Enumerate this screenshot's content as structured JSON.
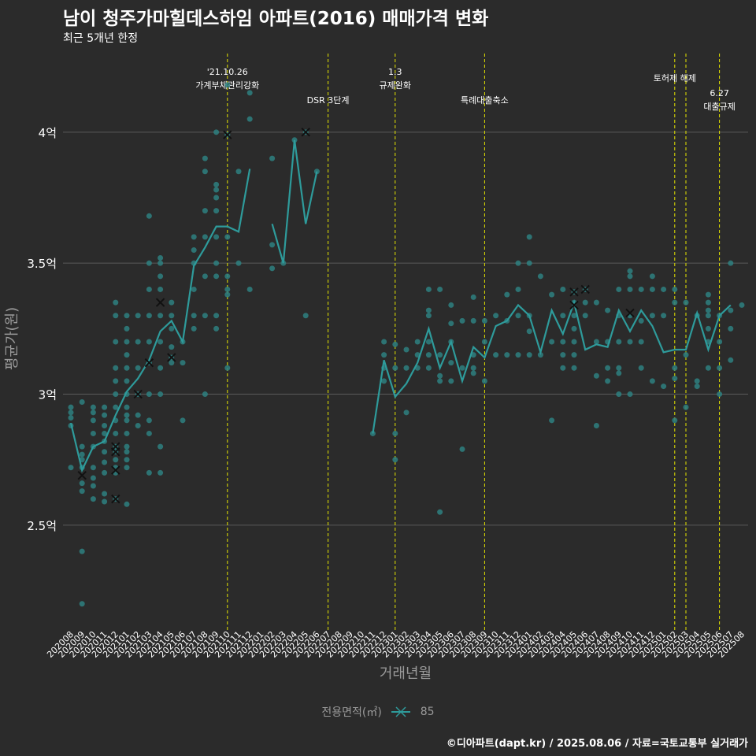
{
  "title": "남이 청주가마힐데스하임 아파트(2016) 매매가격 변화",
  "subtitle": "최근 5개년 한정",
  "caption": "©디아파트(dapt.kr) / 2025.08.06 / 자료=국토교통부 실거래가",
  "legend": {
    "title": "전용면적(㎡)",
    "item": "85"
  },
  "colors": {
    "background": "#2b2b2b",
    "series": "#2e9b9b",
    "point": "#2e8080",
    "vline": "#e5e500",
    "grid": "#5a5a5a",
    "text": "#ffffff",
    "axis_text": "#9a9a9a",
    "cross": "#111111"
  },
  "chart_data": {
    "type": "line",
    "xlabel": "거래년월",
    "ylabel": "평균가(원)",
    "ylim": [
      2.1,
      4.3
    ],
    "y_ticks": [
      {
        "value": 2.5,
        "label": "2.5억"
      },
      {
        "value": 3.0,
        "label": "3억"
      },
      {
        "value": 3.5,
        "label": "3.5억"
      },
      {
        "value": 4.0,
        "label": "4억"
      }
    ],
    "x_categories": [
      "202008",
      "202009",
      "202010",
      "202011",
      "202012",
      "202101",
      "202102",
      "202103",
      "202104",
      "202105",
      "202106",
      "202107",
      "202108",
      "202109",
      "202110",
      "202111",
      "202112",
      "202201",
      "202202",
      "202203",
      "202204",
      "202205",
      "202206",
      "202207",
      "202208",
      "202209",
      "202210",
      "202211",
      "202212",
      "202301",
      "202302",
      "202303",
      "202304",
      "202305",
      "202306",
      "202307",
      "202308",
      "202309",
      "202310",
      "202311",
      "202312",
      "202401",
      "202402",
      "202403",
      "202404",
      "202405",
      "202406",
      "202407",
      "202408",
      "202409",
      "202410",
      "202411",
      "202412",
      "202501",
      "202502",
      "202503",
      "202504",
      "202505",
      "202506",
      "202507",
      "202508"
    ],
    "series": [
      {
        "name": "85",
        "values": [
          2.89,
          2.71,
          2.8,
          2.82,
          2.92,
          3.01,
          3.06,
          3.13,
          3.24,
          3.28,
          3.2,
          3.49,
          3.56,
          3.64,
          3.64,
          3.62,
          3.86,
          null,
          3.65,
          3.5,
          3.97,
          3.65,
          3.85,
          null,
          null,
          null,
          null,
          2.85,
          3.13,
          2.99,
          3.04,
          3.12,
          3.25,
          3.1,
          3.2,
          3.05,
          3.18,
          3.14,
          3.26,
          3.28,
          3.34,
          3.3,
          3.16,
          3.32,
          3.23,
          3.35,
          3.17,
          3.19,
          3.18,
          3.32,
          3.24,
          3.32,
          3.26,
          3.16,
          3.17,
          3.17,
          3.31,
          3.17,
          3.3,
          3.34,
          null
        ]
      }
    ],
    "points": [
      [
        0,
        2.95
      ],
      [
        0,
        2.93
      ],
      [
        0,
        2.91
      ],
      [
        0,
        2.88
      ],
      [
        0,
        2.72
      ],
      [
        1,
        2.97
      ],
      [
        1,
        2.8
      ],
      [
        1,
        2.77
      ],
      [
        1,
        2.75
      ],
      [
        1,
        2.72
      ],
      [
        1,
        2.66
      ],
      [
        1,
        2.63
      ],
      [
        1,
        2.4
      ],
      [
        1,
        2.2
      ],
      [
        2,
        2.95
      ],
      [
        2,
        2.93
      ],
      [
        2,
        2.9
      ],
      [
        2,
        2.85
      ],
      [
        2,
        2.8
      ],
      [
        2,
        2.72
      ],
      [
        2,
        2.68
      ],
      [
        2,
        2.65
      ],
      [
        2,
        2.6
      ],
      [
        3,
        2.95
      ],
      [
        3,
        2.92
      ],
      [
        3,
        2.88
      ],
      [
        3,
        2.85
      ],
      [
        3,
        2.82
      ],
      [
        3,
        2.78
      ],
      [
        3,
        2.74
      ],
      [
        3,
        2.7
      ],
      [
        3,
        2.62
      ],
      [
        3,
        2.59
      ],
      [
        4,
        3.35
      ],
      [
        4,
        3.3
      ],
      [
        4,
        3.2
      ],
      [
        4,
        3.1
      ],
      [
        4,
        3.05
      ],
      [
        4,
        3.0
      ],
      [
        4,
        2.95
      ],
      [
        4,
        2.9
      ],
      [
        4,
        2.85
      ],
      [
        4,
        2.8
      ],
      [
        4,
        2.78
      ],
      [
        4,
        2.75
      ],
      [
        4,
        2.72
      ],
      [
        4,
        2.7
      ],
      [
        4,
        2.6
      ],
      [
        5,
        3.3
      ],
      [
        5,
        3.25
      ],
      [
        5,
        3.2
      ],
      [
        5,
        3.15
      ],
      [
        5,
        3.1
      ],
      [
        5,
        3.05
      ],
      [
        5,
        3.0
      ],
      [
        5,
        2.95
      ],
      [
        5,
        2.92
      ],
      [
        5,
        2.9
      ],
      [
        5,
        2.85
      ],
      [
        5,
        2.8
      ],
      [
        5,
        2.78
      ],
      [
        5,
        2.75
      ],
      [
        5,
        2.72
      ],
      [
        5,
        2.58
      ],
      [
        6,
        3.3
      ],
      [
        6,
        3.2
      ],
      [
        6,
        3.1
      ],
      [
        6,
        3.0
      ],
      [
        6,
        2.92
      ],
      [
        6,
        2.88
      ],
      [
        7,
        3.68
      ],
      [
        7,
        3.5
      ],
      [
        7,
        3.4
      ],
      [
        7,
        3.3
      ],
      [
        7,
        3.2
      ],
      [
        7,
        3.12
      ],
      [
        7,
        3.0
      ],
      [
        7,
        2.9
      ],
      [
        7,
        2.85
      ],
      [
        7,
        2.7
      ],
      [
        8,
        3.52
      ],
      [
        8,
        3.5
      ],
      [
        8,
        3.45
      ],
      [
        8,
        3.4
      ],
      [
        8,
        3.3
      ],
      [
        8,
        3.2
      ],
      [
        8,
        3.1
      ],
      [
        8,
        3.0
      ],
      [
        8,
        2.8
      ],
      [
        8,
        2.7
      ],
      [
        9,
        3.35
      ],
      [
        9,
        3.3
      ],
      [
        9,
        3.25
      ],
      [
        9,
        3.18
      ],
      [
        9,
        3.14
      ],
      [
        9,
        3.12
      ],
      [
        10,
        3.2
      ],
      [
        10,
        3.12
      ],
      [
        10,
        2.9
      ],
      [
        11,
        3.6
      ],
      [
        11,
        3.55
      ],
      [
        11,
        3.5
      ],
      [
        11,
        3.4
      ],
      [
        11,
        3.3
      ],
      [
        11,
        3.25
      ],
      [
        12,
        3.9
      ],
      [
        12,
        3.85
      ],
      [
        12,
        3.7
      ],
      [
        12,
        3.6
      ],
      [
        12,
        3.45
      ],
      [
        12,
        3.3
      ],
      [
        12,
        3.0
      ],
      [
        13,
        4.0
      ],
      [
        13,
        3.8
      ],
      [
        13,
        3.78
      ],
      [
        13,
        3.75
      ],
      [
        13,
        3.7
      ],
      [
        13,
        3.6
      ],
      [
        13,
        3.5
      ],
      [
        13,
        3.45
      ],
      [
        13,
        3.3
      ],
      [
        13,
        3.25
      ],
      [
        14,
        4.18
      ],
      [
        14,
        3.99
      ],
      [
        14,
        3.6
      ],
      [
        14,
        3.45
      ],
      [
        14,
        3.4
      ],
      [
        14,
        3.38
      ],
      [
        14,
        3.1
      ],
      [
        15,
        3.85
      ],
      [
        15,
        3.5
      ],
      [
        16,
        4.15
      ],
      [
        16,
        4.05
      ],
      [
        16,
        3.4
      ],
      [
        18,
        3.9
      ],
      [
        18,
        3.57
      ],
      [
        18,
        3.48
      ],
      [
        19,
        3.5
      ],
      [
        20,
        3.97
      ],
      [
        21,
        4.0
      ],
      [
        21,
        3.3
      ],
      [
        22,
        3.85
      ],
      [
        27,
        2.85
      ],
      [
        28,
        3.2
      ],
      [
        28,
        3.15
      ],
      [
        28,
        3.1
      ],
      [
        28,
        3.05
      ],
      [
        29,
        3.19
      ],
      [
        29,
        3.1
      ],
      [
        29,
        2.85
      ],
      [
        29,
        2.75
      ],
      [
        30,
        3.17
      ],
      [
        30,
        3.1
      ],
      [
        30,
        2.93
      ],
      [
        31,
        3.2
      ],
      [
        31,
        3.15
      ],
      [
        31,
        3.1
      ],
      [
        32,
        3.4
      ],
      [
        32,
        3.32
      ],
      [
        32,
        3.3
      ],
      [
        32,
        3.2
      ],
      [
        32,
        3.15
      ],
      [
        32,
        3.1
      ],
      [
        33,
        3.4
      ],
      [
        33,
        3.15
      ],
      [
        33,
        3.07
      ],
      [
        33,
        3.05
      ],
      [
        33,
        2.55
      ],
      [
        34,
        3.34
      ],
      [
        34,
        3.27
      ],
      [
        34,
        3.2
      ],
      [
        34,
        3.12
      ],
      [
        34,
        3.05
      ],
      [
        35,
        3.28
      ],
      [
        35,
        3.1
      ],
      [
        35,
        2.79
      ],
      [
        36,
        3.37
      ],
      [
        36,
        3.28
      ],
      [
        36,
        3.15
      ],
      [
        36,
        3.1
      ],
      [
        36,
        3.08
      ],
      [
        37,
        3.28
      ],
      [
        37,
        3.2
      ],
      [
        37,
        3.05
      ],
      [
        38,
        3.3
      ],
      [
        38,
        3.15
      ],
      [
        39,
        3.38
      ],
      [
        39,
        3.28
      ],
      [
        39,
        3.15
      ],
      [
        40,
        3.5
      ],
      [
        40,
        3.4
      ],
      [
        40,
        3.3
      ],
      [
        40,
        3.15
      ],
      [
        41,
        3.6
      ],
      [
        41,
        3.5
      ],
      [
        41,
        3.3
      ],
      [
        41,
        3.24
      ],
      [
        41,
        3.15
      ],
      [
        42,
        3.45
      ],
      [
        42,
        3.15
      ],
      [
        43,
        3.38
      ],
      [
        43,
        3.2
      ],
      [
        43,
        2.9
      ],
      [
        44,
        3.4
      ],
      [
        44,
        3.3
      ],
      [
        44,
        3.2
      ],
      [
        44,
        3.15
      ],
      [
        44,
        3.1
      ],
      [
        45,
        3.39
      ],
      [
        45,
        3.35
      ],
      [
        45,
        3.3
      ],
      [
        45,
        3.25
      ],
      [
        45,
        3.2
      ],
      [
        45,
        3.15
      ],
      [
        45,
        3.1
      ],
      [
        46,
        3.4
      ],
      [
        46,
        3.35
      ],
      [
        46,
        3.3
      ],
      [
        47,
        3.35
      ],
      [
        47,
        3.2
      ],
      [
        47,
        3.07
      ],
      [
        47,
        2.88
      ],
      [
        48,
        3.32
      ],
      [
        48,
        3.2
      ],
      [
        48,
        3.1
      ],
      [
        48,
        3.05
      ],
      [
        49,
        3.4
      ],
      [
        49,
        3.3
      ],
      [
        49,
        3.2
      ],
      [
        49,
        3.1
      ],
      [
        49,
        3.08
      ],
      [
        49,
        3.0
      ],
      [
        50,
        3.47
      ],
      [
        50,
        3.45
      ],
      [
        50,
        3.4
      ],
      [
        50,
        3.3
      ],
      [
        50,
        3.2
      ],
      [
        50,
        3.0
      ],
      [
        51,
        3.4
      ],
      [
        51,
        3.28
      ],
      [
        51,
        3.2
      ],
      [
        51,
        3.1
      ],
      [
        52,
        3.45
      ],
      [
        52,
        3.4
      ],
      [
        52,
        3.3
      ],
      [
        52,
        3.05
      ],
      [
        53,
        3.4
      ],
      [
        53,
        3.3
      ],
      [
        53,
        3.03
      ],
      [
        54,
        3.4
      ],
      [
        54,
        3.35
      ],
      [
        54,
        3.1
      ],
      [
        54,
        3.06
      ],
      [
        54,
        2.9
      ],
      [
        55,
        3.35
      ],
      [
        55,
        3.15
      ],
      [
        55,
        2.95
      ],
      [
        56,
        3.3
      ],
      [
        56,
        3.05
      ],
      [
        56,
        3.03
      ],
      [
        57,
        3.38
      ],
      [
        57,
        3.35
      ],
      [
        57,
        3.32
      ],
      [
        57,
        3.3
      ],
      [
        57,
        3.25
      ],
      [
        57,
        3.2
      ],
      [
        57,
        3.1
      ],
      [
        58,
        3.3
      ],
      [
        58,
        3.2
      ],
      [
        58,
        3.1
      ],
      [
        58,
        3.0
      ],
      [
        59,
        3.5
      ],
      [
        59,
        3.32
      ],
      [
        59,
        3.25
      ],
      [
        59,
        3.13
      ],
      [
        60,
        3.34
      ]
    ],
    "cross_marks": [
      [
        1,
        2.69
      ],
      [
        4,
        2.8
      ],
      [
        4,
        2.78
      ],
      [
        4,
        2.71
      ],
      [
        4,
        2.6
      ],
      [
        6,
        3.0
      ],
      [
        7,
        3.12
      ],
      [
        8,
        3.35
      ],
      [
        9,
        3.14
      ],
      [
        14,
        3.99
      ],
      [
        21,
        4.0
      ],
      [
        45,
        3.39
      ],
      [
        45,
        3.34
      ],
      [
        46,
        3.4
      ],
      [
        50,
        3.31
      ]
    ],
    "annotations": [
      {
        "x": "202110",
        "lines": [
          "'21.10.26",
          "가계부채관리강화"
        ],
        "row": 0
      },
      {
        "x": "202207",
        "lines": [
          "DSR 3단계"
        ],
        "row": 1
      },
      {
        "x": "202301",
        "lines": [
          "1.3",
          "규제완화"
        ],
        "row": 0
      },
      {
        "x": "202309",
        "lines": [
          "특례대출축소"
        ],
        "row": 1
      },
      {
        "x": "202502",
        "lines": [
          "토허제 해제"
        ],
        "row": 0
      },
      {
        "x": "202503",
        "lines": [],
        "row": 0
      },
      {
        "x": "202506",
        "lines": [
          "6.27",
          "대출규제"
        ],
        "row": 1
      }
    ]
  }
}
